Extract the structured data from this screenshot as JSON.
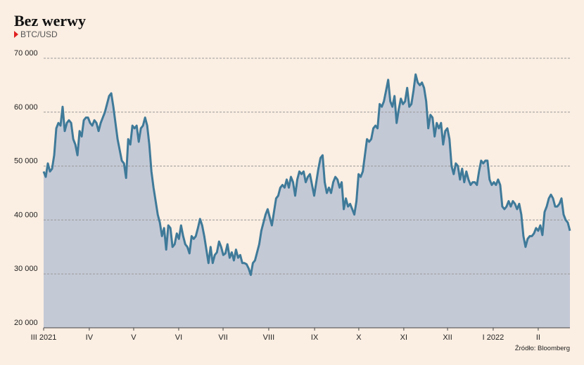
{
  "chart_data": {
    "type": "area",
    "title": "Bez werwy",
    "subtitle": "BTC/USD",
    "source": "Źródło: Bloomberg",
    "series": [
      {
        "name": "BTC/USD",
        "color": "#3f7a99",
        "fill": "#c4c9d6",
        "values": [
          49000,
          48000,
          50500,
          49000,
          49500,
          52000,
          57000,
          58000,
          57500,
          61000,
          56500,
          58000,
          58500,
          58000,
          55000,
          54000,
          52000,
          56500,
          55500,
          58500,
          59000,
          59000,
          58000,
          57500,
          58500,
          58000,
          56500,
          58000,
          59000,
          60000,
          61500,
          63000,
          63500,
          61000,
          58000,
          55000,
          53000,
          51000,
          50500,
          47800,
          55000,
          54000,
          57500,
          57000,
          57500,
          54500,
          57000,
          57500,
          59000,
          57500,
          54000,
          49000,
          46000,
          43500,
          41000,
          39500,
          37000,
          38500,
          34500,
          39000,
          38500,
          35000,
          35500,
          37500,
          36500,
          39000,
          37000,
          35500,
          35000,
          33800,
          37000,
          36500,
          37000,
          38500,
          40200,
          39000,
          37000,
          34500,
          32000,
          35000,
          32000,
          33500,
          34000,
          36000,
          35000,
          33500,
          33800,
          35500,
          33000,
          34000,
          32500,
          34500,
          33000,
          33500,
          32000,
          32000,
          31800,
          31000,
          29800,
          32000,
          32500,
          34000,
          35500,
          38000,
          39500,
          41000,
          42000,
          40500,
          39000,
          41500,
          44000,
          44500,
          46000,
          46500,
          46000,
          47500,
          46000,
          48000,
          47000,
          44500,
          47500,
          49000,
          48500,
          49000,
          47000,
          48000,
          48500,
          46500,
          44500,
          47000,
          49500,
          51500,
          52000,
          47000,
          45000,
          46000,
          45000,
          47000,
          48000,
          47500,
          46000,
          47000,
          42000,
          44000,
          42500,
          43000,
          42000,
          41000,
          43500,
          48500,
          48000,
          49000,
          52000,
          55000,
          54500,
          55000,
          57000,
          57500,
          57000,
          61500,
          61000,
          62000,
          64000,
          66000,
          62000,
          61000,
          63000,
          58000,
          60500,
          62500,
          61500,
          62000,
          64500,
          61000,
          61500,
          64000,
          67000,
          65500,
          65000,
          65500,
          64500,
          62000,
          57000,
          59500,
          59000,
          55500,
          58000,
          57000,
          58000,
          54000,
          56500,
          57000,
          55000,
          50000,
          48500,
          50500,
          50000,
          47500,
          49500,
          47000,
          49000,
          47500,
          46500,
          47000,
          47000,
          46500,
          49000,
          51000,
          50500,
          51000,
          51000,
          47500,
          46500,
          47000,
          46500,
          47500,
          46500,
          42500,
          42000,
          42500,
          43500,
          42500,
          43500,
          43000,
          42000,
          43000,
          41000,
          37000,
          35000,
          36500,
          37000,
          37000,
          37500,
          38500,
          38000,
          39000,
          37200,
          41500,
          42500,
          44000,
          44700,
          44000,
          42500,
          42500,
          43000,
          44000,
          41000,
          40000,
          39500,
          38000
        ]
      }
    ],
    "xlim": [
      0,
      249
    ],
    "xticks": [
      {
        "value": 0,
        "label": "III 2021"
      },
      {
        "value": 21.6,
        "label": "IV"
      },
      {
        "value": 42.6,
        "label": "V"
      },
      {
        "value": 63.9,
        "label": "VI"
      },
      {
        "value": 84.9,
        "label": "VII"
      },
      {
        "value": 106.5,
        "label": "VIII"
      },
      {
        "value": 128.2,
        "label": "IX"
      },
      {
        "value": 149.1,
        "label": "X"
      },
      {
        "value": 170.4,
        "label": "XI"
      },
      {
        "value": 191.1,
        "label": "XII"
      },
      {
        "value": 212.7,
        "label": "I 2022"
      },
      {
        "value": 234.0,
        "label": "II"
      }
    ],
    "ylim": [
      20000,
      70000
    ],
    "yticks": [
      {
        "value": 20000,
        "label": "20 000"
      },
      {
        "value": 30000,
        "label": "30 000"
      },
      {
        "value": 40000,
        "label": "40 000"
      },
      {
        "value": 50000,
        "label": "50 000"
      },
      {
        "value": 60000,
        "label": "60 000"
      },
      {
        "value": 70000,
        "label": "70 000"
      }
    ],
    "grid": true
  }
}
